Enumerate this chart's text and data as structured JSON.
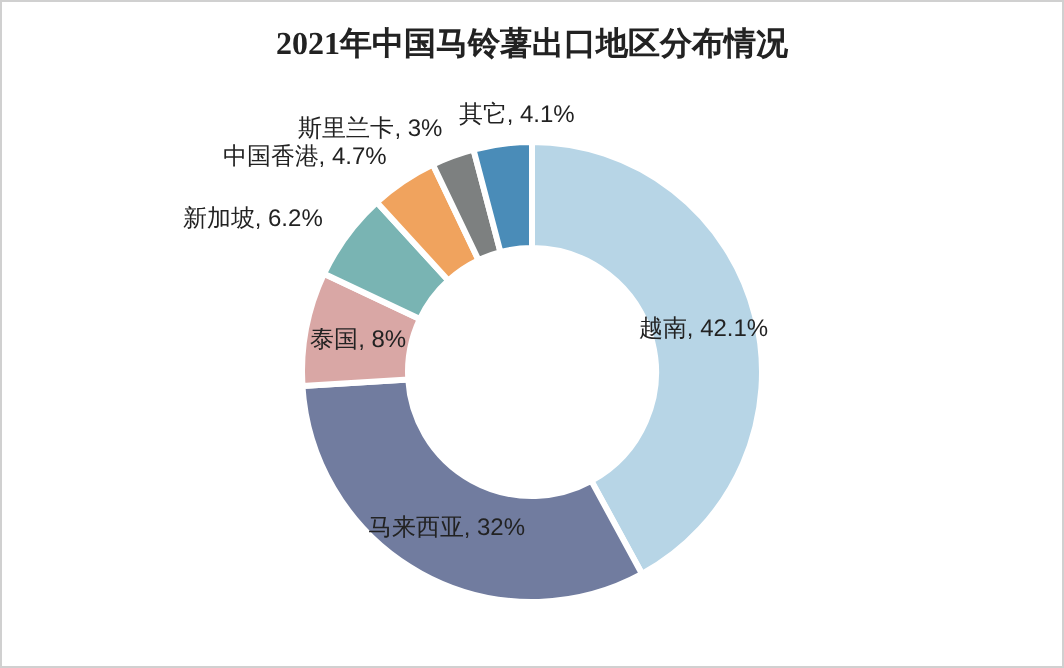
{
  "chart_data": {
    "type": "donut",
    "title": "2021年中国马铃薯出口地区分布情况",
    "categories": [
      "越南",
      "马来西亚",
      "泰国",
      "新加坡",
      "中国香港",
      "斯里兰卡",
      "其它"
    ],
    "values": [
      42.1,
      32,
      8,
      6.2,
      4.7,
      3,
      4.1
    ],
    "colors": [
      "#b7d5e6",
      "#717c9f",
      "#d9a7a5",
      "#79b4b3",
      "#f0a35e",
      "#7d8080",
      "#4a8cb8"
    ],
    "value_labels": [
      ", 42.1%",
      ", 32%",
      ", 8%",
      ", 6.2%",
      ", 4.7%",
      ", 3%",
      ", 4.1%"
    ]
  }
}
